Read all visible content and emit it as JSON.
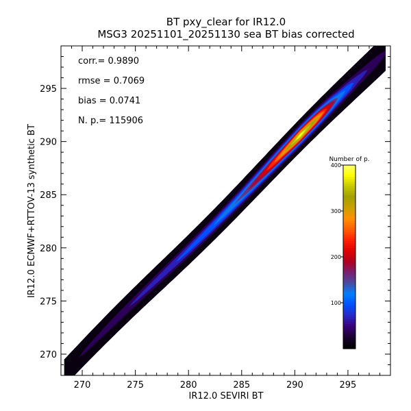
{
  "chart_data": {
    "type": "heatmap",
    "title": "BT pxy_clear for IR12.0",
    "subtitle": "MSG3 20251101_20251130 sea BT bias corrected",
    "xlabel": "IR12.0 SEVIRI BT",
    "ylabel": "IR12.0 ECMWF+RTTOV-13 synthetic BT",
    "xlim": [
      268.0,
      299.0
    ],
    "ylim": [
      268.0,
      299.0
    ],
    "xticks": [
      270,
      275,
      280,
      285,
      290,
      295
    ],
    "yticks": [
      270,
      275,
      280,
      285,
      290,
      295
    ],
    "stats": [
      {
        "label": "corr.=",
        "value": "0.9890"
      },
      {
        "label": "rmse =",
        "value": "0.7069"
      },
      {
        "label": "bias =",
        "value": "0.0741"
      },
      {
        "label": "N. p.=",
        "value": "115906"
      }
    ],
    "colorbar": {
      "title": "Number of p.",
      "range": [
        0,
        400
      ],
      "ticks": [
        100,
        200,
        300,
        400
      ],
      "colors": [
        "#000000",
        "#1a0030",
        "#3a0078",
        "#2828c8",
        "#0050ff",
        "#0080ff",
        "#4a4aa0",
        "#7a2070",
        "#b00020",
        "#e00000",
        "#ff2000",
        "#ff6000",
        "#ff9000",
        "#c8a000",
        "#a0a000",
        "#c8c800",
        "#ffff00",
        "#ffff80"
      ]
    },
    "density_ridge": [
      {
        "x": 268.5,
        "count": 20
      },
      {
        "x": 270.0,
        "count": 30
      },
      {
        "x": 272.5,
        "count": 45
      },
      {
        "x": 275.0,
        "count": 60
      },
      {
        "x": 277.5,
        "count": 75
      },
      {
        "x": 280.0,
        "count": 95
      },
      {
        "x": 282.5,
        "count": 115
      },
      {
        "x": 285.0,
        "count": 150
      },
      {
        "x": 287.0,
        "count": 210
      },
      {
        "x": 289.0,
        "count": 300
      },
      {
        "x": 290.5,
        "count": 390
      },
      {
        "x": 292.0,
        "count": 320
      },
      {
        "x": 294.0,
        "count": 140
      },
      {
        "x": 296.0,
        "count": 70
      },
      {
        "x": 298.5,
        "count": 30
      }
    ]
  }
}
